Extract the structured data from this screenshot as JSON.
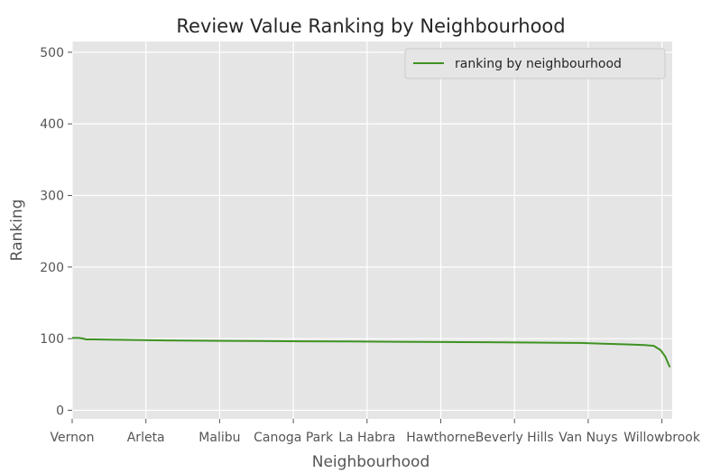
{
  "chart_data": {
    "type": "line",
    "title": "Review Value Ranking by Neighbourhood",
    "xlabel": "Neighbourhood",
    "ylabel": "Ranking",
    "x_tick_labels": [
      "Vernon",
      "Arleta",
      "Malibu",
      "Canoga Park",
      "La Habra",
      "Hawthorne",
      "Beverly Hills",
      "Van Nuys",
      "Willowbrook"
    ],
    "y_ticks": [
      0,
      100,
      200,
      300,
      400,
      500
    ],
    "ylim": [
      -12,
      515
    ],
    "xlim": [
      0,
      260
    ],
    "grid": true,
    "legend_position": "top-right",
    "series": [
      {
        "name": "ranking by neighbourhood",
        "color": "#3f9222",
        "x": [
          0,
          3,
          5,
          6,
          10,
          20,
          30,
          40,
          60,
          80,
          100,
          120,
          140,
          160,
          180,
          200,
          220,
          230,
          240,
          248,
          252,
          255,
          257,
          259
        ],
        "values": [
          101,
          101,
          100,
          99,
          99,
          98.5,
          98,
          97.5,
          97,
          96.7,
          96.3,
          96,
          95.7,
          95.3,
          95,
          94.5,
          94,
          93,
          92,
          91,
          90,
          84,
          75,
          60
        ]
      }
    ]
  },
  "colors": {
    "plot_background": "#e5e5e5",
    "grid": "#ffffff"
  }
}
